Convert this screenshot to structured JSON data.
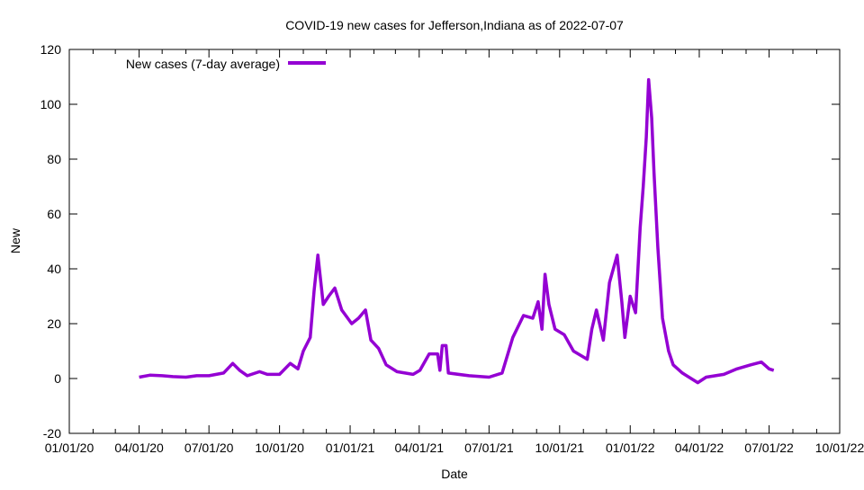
{
  "chart_data": {
    "type": "line",
    "title": "COVID-19 new cases for Jefferson,Indiana as of 2022-07-07",
    "xlabel": "Date",
    "ylabel": "New",
    "xlim": [
      "2020-01-01",
      "2022-10-01"
    ],
    "ylim": [
      -20,
      120
    ],
    "yticks": [
      -20,
      0,
      20,
      40,
      60,
      80,
      100,
      120
    ],
    "xticks": [
      {
        "date": "2020-01-01",
        "label": "01/01/20"
      },
      {
        "date": "2020-04-01",
        "label": "04/01/20"
      },
      {
        "date": "2020-07-01",
        "label": "07/01/20"
      },
      {
        "date": "2020-10-01",
        "label": "10/01/20"
      },
      {
        "date": "2021-01-01",
        "label": "01/01/21"
      },
      {
        "date": "2021-04-01",
        "label": "04/01/21"
      },
      {
        "date": "2021-07-01",
        "label": "07/01/21"
      },
      {
        "date": "2021-10-01",
        "label": "10/01/21"
      },
      {
        "date": "2022-01-01",
        "label": "01/01/22"
      },
      {
        "date": "2022-04-01",
        "label": "04/01/22"
      },
      {
        "date": "2022-07-01",
        "label": "07/01/22"
      },
      {
        "date": "2022-10-01",
        "label": "10/01/22"
      }
    ],
    "grid": false,
    "legend": {
      "position": "top-left",
      "entries": [
        "New cases (7-day average)"
      ]
    },
    "series": [
      {
        "name": "New cases (7-day average)",
        "color": "#9400d3",
        "points": [
          [
            "2020-04-01",
            0.5
          ],
          [
            "2020-04-15",
            1.2
          ],
          [
            "2020-05-01",
            1
          ],
          [
            "2020-05-15",
            0.7
          ],
          [
            "2020-06-01",
            0.5
          ],
          [
            "2020-06-15",
            1
          ],
          [
            "2020-07-01",
            1
          ],
          [
            "2020-07-20",
            2
          ],
          [
            "2020-08-01",
            5.5
          ],
          [
            "2020-08-10",
            3
          ],
          [
            "2020-08-20",
            1
          ],
          [
            "2020-09-05",
            2.5
          ],
          [
            "2020-09-15",
            1.5
          ],
          [
            "2020-10-01",
            1.5
          ],
          [
            "2020-10-15",
            5.5
          ],
          [
            "2020-10-25",
            3.5
          ],
          [
            "2020-11-01",
            10
          ],
          [
            "2020-11-10",
            15
          ],
          [
            "2020-11-15",
            32
          ],
          [
            "2020-11-20",
            45
          ],
          [
            "2020-11-27",
            27
          ],
          [
            "2020-12-04",
            30
          ],
          [
            "2020-12-12",
            33
          ],
          [
            "2020-12-21",
            25
          ],
          [
            "2021-01-03",
            20
          ],
          [
            "2021-01-12",
            22
          ],
          [
            "2021-01-21",
            25
          ],
          [
            "2021-01-28",
            14
          ],
          [
            "2021-02-07",
            11
          ],
          [
            "2021-02-17",
            5
          ],
          [
            "2021-03-03",
            2.5
          ],
          [
            "2021-03-24",
            1.5
          ],
          [
            "2021-04-02",
            3
          ],
          [
            "2021-04-14",
            9
          ],
          [
            "2021-04-25",
            9
          ],
          [
            "2021-04-28",
            3
          ],
          [
            "2021-05-01",
            12
          ],
          [
            "2021-05-06",
            12
          ],
          [
            "2021-05-09",
            2
          ],
          [
            "2021-06-05",
            1
          ],
          [
            "2021-07-01",
            0.5
          ],
          [
            "2021-07-18",
            2
          ],
          [
            "2021-08-01",
            15
          ],
          [
            "2021-08-15",
            23
          ],
          [
            "2021-08-27",
            22
          ],
          [
            "2021-09-03",
            28
          ],
          [
            "2021-09-08",
            18
          ],
          [
            "2021-09-12",
            38
          ],
          [
            "2021-09-17",
            27
          ],
          [
            "2021-09-25",
            18
          ],
          [
            "2021-10-07",
            16
          ],
          [
            "2021-10-19",
            10
          ],
          [
            "2021-11-06",
            7
          ],
          [
            "2021-11-12",
            18
          ],
          [
            "2021-11-18",
            25
          ],
          [
            "2021-11-27",
            14
          ],
          [
            "2021-12-05",
            35
          ],
          [
            "2021-12-15",
            45
          ],
          [
            "2021-12-21",
            28
          ],
          [
            "2021-12-25",
            15
          ],
          [
            "2022-01-01",
            30
          ],
          [
            "2022-01-08",
            24
          ],
          [
            "2022-01-14",
            55
          ],
          [
            "2022-01-18",
            70
          ],
          [
            "2022-01-22",
            88
          ],
          [
            "2022-01-25",
            109
          ],
          [
            "2022-01-29",
            95
          ],
          [
            "2022-02-01",
            75
          ],
          [
            "2022-02-06",
            48
          ],
          [
            "2022-02-12",
            22
          ],
          [
            "2022-02-20",
            10
          ],
          [
            "2022-02-26",
            5
          ],
          [
            "2022-03-10",
            2
          ],
          [
            "2022-03-30",
            -1.5
          ],
          [
            "2022-04-10",
            0.5
          ],
          [
            "2022-05-03",
            1.5
          ],
          [
            "2022-05-20",
            3.5
          ],
          [
            "2022-06-07",
            5
          ],
          [
            "2022-06-21",
            6
          ],
          [
            "2022-07-01",
            3.5
          ],
          [
            "2022-07-07",
            3
          ]
        ]
      }
    ]
  }
}
